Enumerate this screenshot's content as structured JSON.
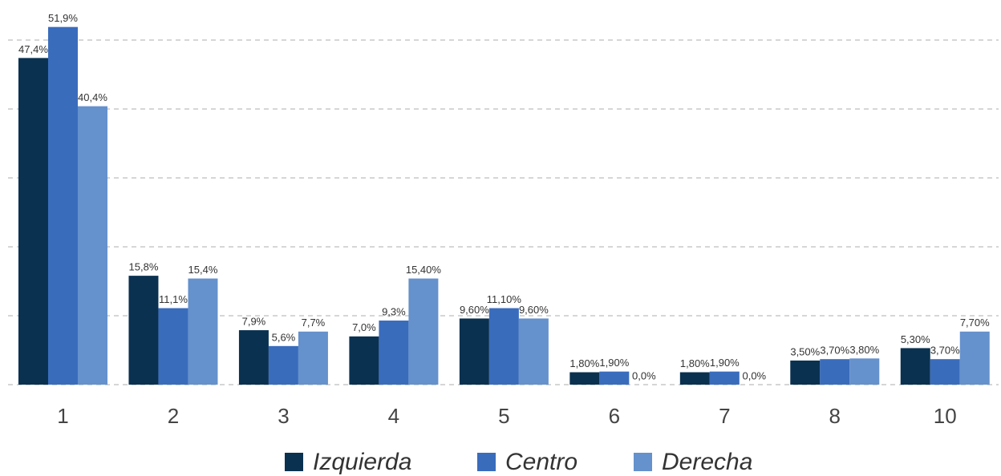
{
  "chart_data": {
    "type": "bar",
    "categories": [
      "1",
      "2",
      "3",
      "4",
      "5",
      "6",
      "7",
      "8",
      "10"
    ],
    "series": [
      {
        "name": "Izquierda",
        "color": "#0a3150",
        "values": [
          47.4,
          15.8,
          7.9,
          7.0,
          9.6,
          1.8,
          1.8,
          3.5,
          5.3
        ],
        "value_labels": [
          "47,4%",
          "15,8%",
          "7,9%",
          "7,0%",
          "9,60%",
          "1,80%",
          "1,80%",
          "3,50%",
          "5,30%"
        ]
      },
      {
        "name": "Centro",
        "color": "#3a6cbc",
        "values": [
          51.9,
          11.1,
          5.6,
          9.3,
          11.1,
          1.9,
          1.9,
          3.7,
          3.7
        ],
        "value_labels": [
          "51,9%",
          "11,1%",
          "5,6%",
          "9,3%",
          "11,10%",
          "1,90%",
          "1,90%",
          "3,70%",
          "3,70%"
        ]
      },
      {
        "name": "Derecha",
        "color": "#6591cc",
        "values": [
          40.4,
          15.4,
          7.7,
          15.4,
          9.6,
          0.0,
          0.0,
          3.8,
          7.7
        ],
        "value_labels": [
          "40,4%",
          "15,4%",
          "7,7%",
          "15,40%",
          "9,60%",
          "0,0%",
          "0,0%",
          "3,80%",
          "7,70%"
        ]
      }
    ],
    "ylim": [
      0,
      55
    ],
    "yticks": [
      0,
      10,
      20,
      30,
      40,
      50
    ],
    "grid": true,
    "legend": "bottom"
  }
}
